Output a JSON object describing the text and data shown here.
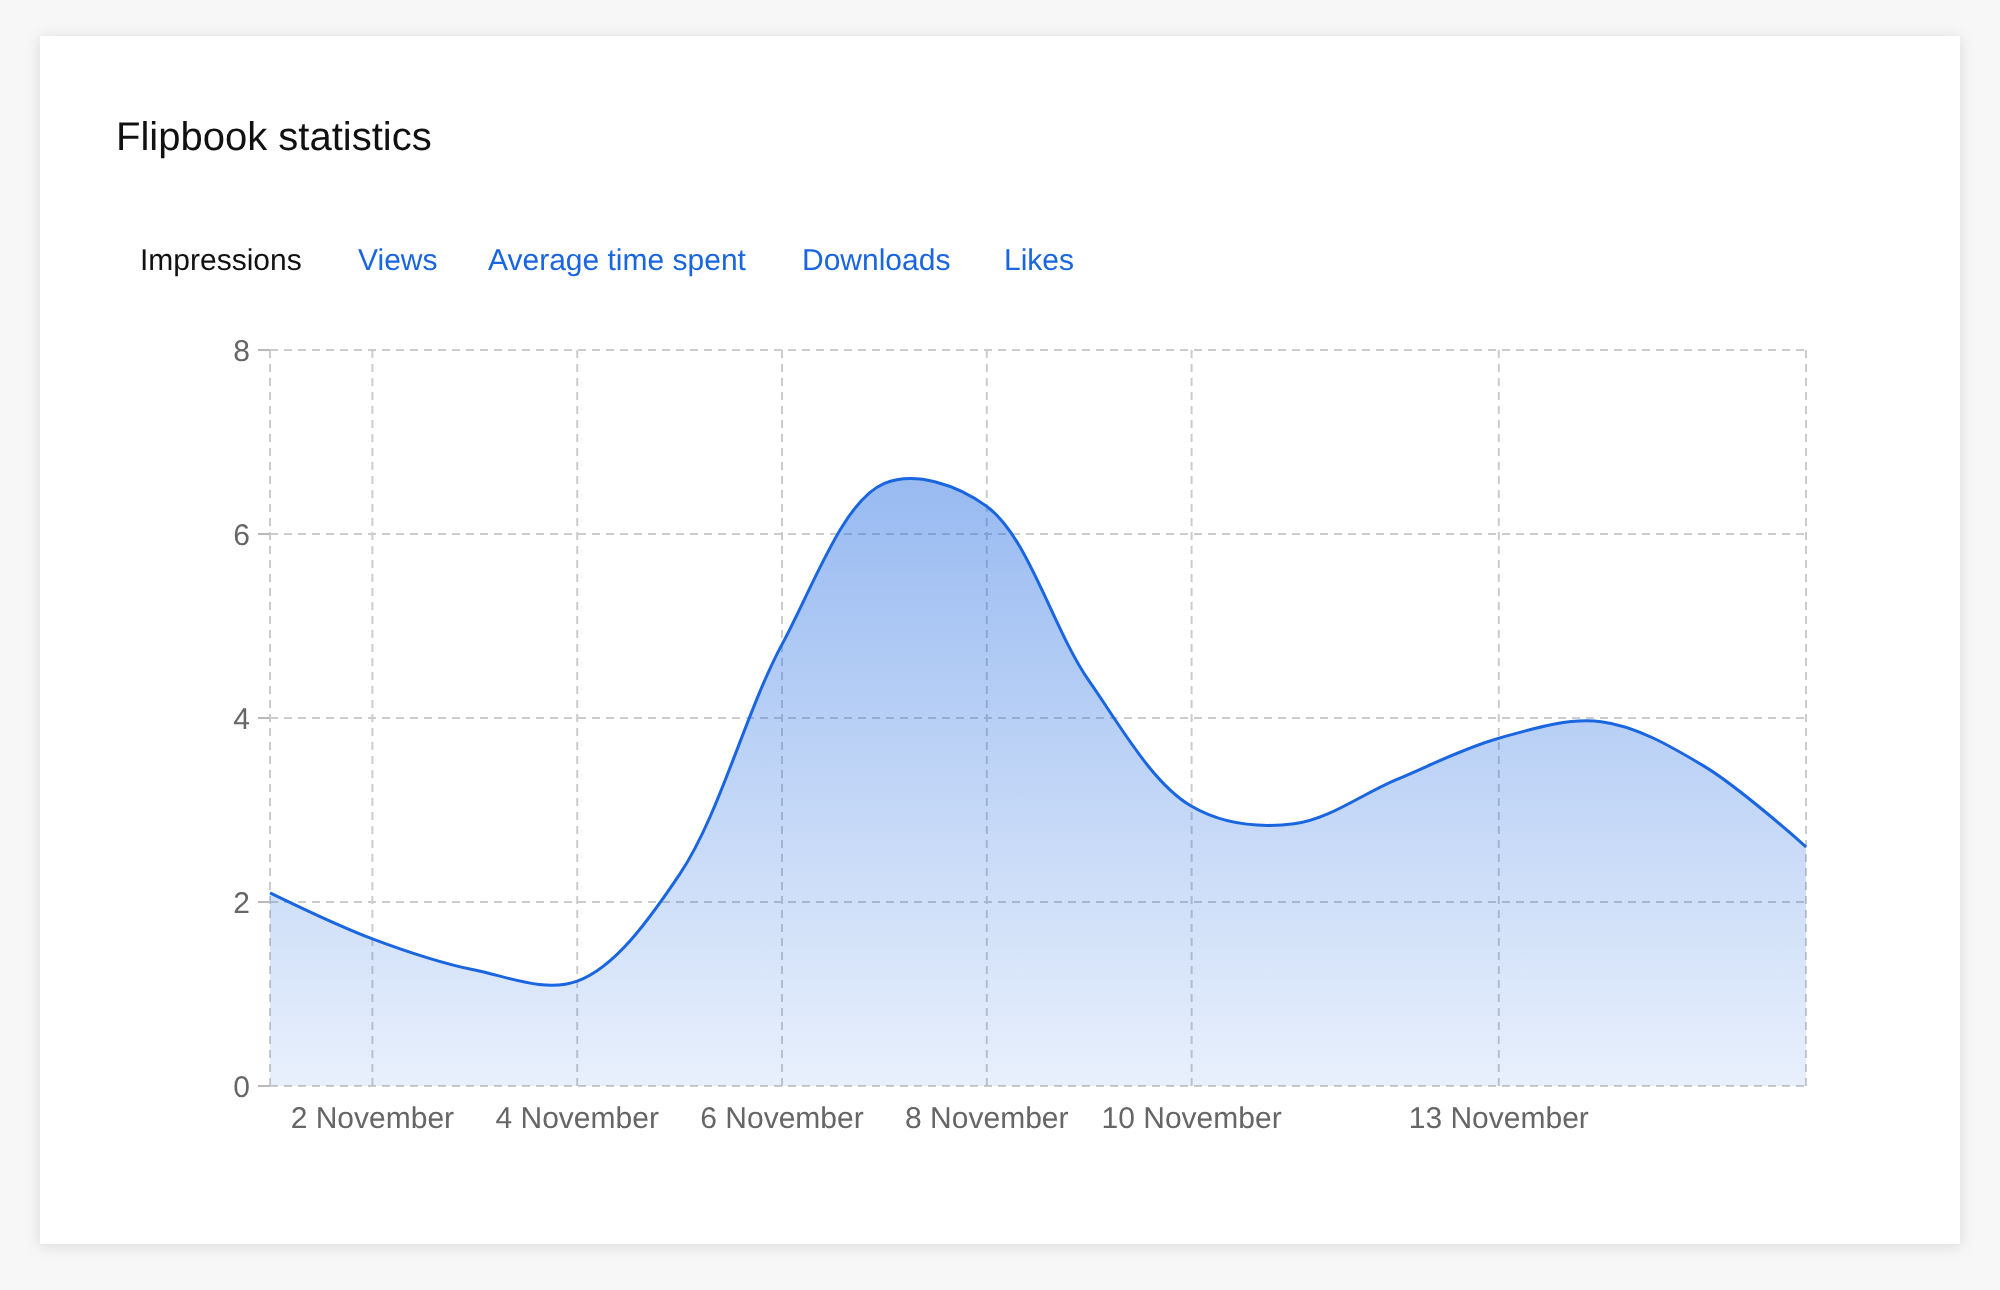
{
  "chart_data": {
    "type": "area",
    "title": "Flipbook statistics",
    "annotations": [
      "Impressions",
      "Views",
      "Average time spent",
      "Downloads",
      "Likes"
    ],
    "x": [
      "--11-01",
      "--11-02",
      "--11-03",
      "--11-04",
      "--11-05",
      "--11-06",
      "--11-07",
      "--11-08",
      "--11-09",
      "--11-10",
      "--11-11",
      "--11-12",
      "--11-13",
      "--11-14",
      "--11-15",
      "--11-16"
    ],
    "series": [
      {
        "color": "#1a66e0",
        "values": [
          2.1,
          1.6,
          1.26,
          1.14,
          2.3,
          4.8,
          6.55,
          6.3,
          4.4,
          3.04,
          2.85,
          3.33,
          3.78,
          3.96,
          3.48,
          2.6
        ]
      }
    ],
    "xlim": [
      "--11-01",
      "--11-16"
    ],
    "xticks": [
      {
        "value": "--11-02",
        "label": "2 November"
      },
      {
        "value": "--11-04",
        "label": "4 November"
      },
      {
        "value": "--11-06",
        "label": "6 November"
      },
      {
        "value": "--11-08",
        "label": "8 November"
      },
      {
        "value": "--11-10",
        "label": "10 November"
      },
      {
        "value": "--11-13",
        "label": "13 November"
      }
    ],
    "ylim": [
      0,
      8
    ],
    "yticks": [
      0,
      2,
      4,
      6,
      8
    ],
    "grid": true
  }
}
